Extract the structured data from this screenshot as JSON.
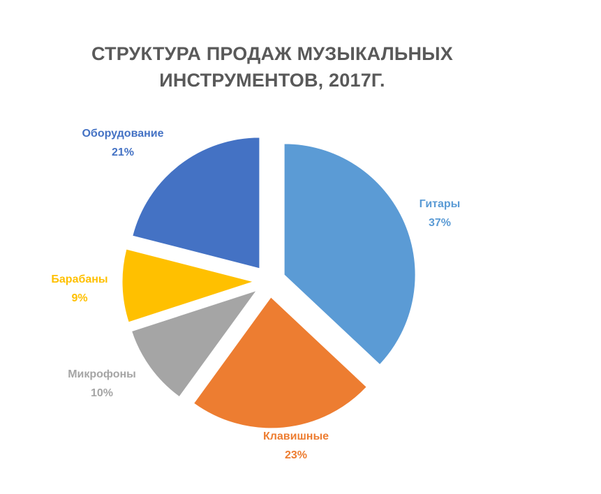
{
  "chart_data": {
    "type": "pie",
    "title_lines": [
      "СТРУКТУРА ПРОДАЖ МУЗЫКАЛЬНЫХ",
      "ИНСТРУМЕНТОВ, 2017Г."
    ],
    "slices": [
      {
        "name": "Гитары",
        "value": 37,
        "value_label": "37%",
        "color": "#5B9BD5"
      },
      {
        "name": "Клавишные",
        "value": 23,
        "value_label": "23%",
        "color": "#ED7D31"
      },
      {
        "name": "Микрофоны",
        "value": 10,
        "value_label": "10%",
        "color": "#A5A5A5"
      },
      {
        "name": "Барабаны",
        "value": 9,
        "value_label": "9%",
        "color": "#FFC000"
      },
      {
        "name": "Оборудование",
        "value": 21,
        "value_label": "21%",
        "color": "#4472C4"
      }
    ],
    "exploded": true,
    "data_labels": "outside, category name and percentage"
  }
}
